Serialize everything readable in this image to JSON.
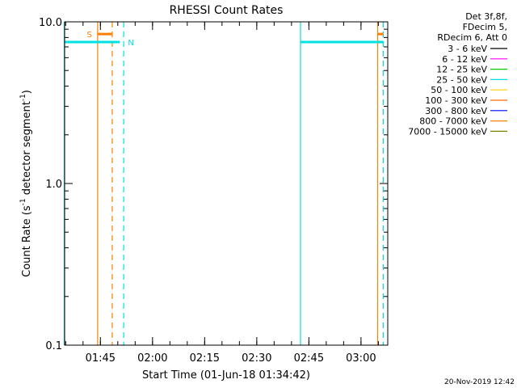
{
  "chart_data": {
    "type": "line",
    "title": "RHESSI Count Rates",
    "xlabel": "Start Time (01-Jun-18 01:34:42)",
    "ylabel_main": "Count Rate (s",
    "ylabel_sup1": "-1",
    "ylabel_mid": " detector segment",
    "ylabel_sup2": "-1",
    "ylabel_end": ")",
    "y_scale": "log",
    "ylim": [
      0.1,
      10.0
    ],
    "y_ticks": [
      "10.0",
      "1.0",
      "0.1"
    ],
    "x_ticks": [
      "01:45",
      "02:00",
      "02:15",
      "02:30",
      "02:45",
      "03:00"
    ],
    "x_range_minutes": [
      94.7,
      187.7
    ],
    "info": [
      "Det 3f,8f,",
      "FDecim 5,",
      "RDecim 6, Att 0"
    ],
    "legend": [
      {
        "label": "3 - 6 keV",
        "color": "#000000"
      },
      {
        "label": "6 - 12 keV",
        "color": "#ff00ff"
      },
      {
        "label": "12 - 25 keV",
        "color": "#00cc00"
      },
      {
        "label": "25 - 50 keV",
        "color": "#00e0e0"
      },
      {
        "label": "50 - 100 keV",
        "color": "#ffcc00"
      },
      {
        "label": "100 - 300 keV",
        "color": "#ff6600"
      },
      {
        "label": "300 - 800 keV",
        "color": "#0000ff"
      },
      {
        "label": "800 - 7000 keV",
        "color": "#ff8000"
      },
      {
        "label": "7000 - 15000 keV",
        "color": "#808000"
      }
    ],
    "markers": [
      {
        "label": "S",
        "color": "#ff8000"
      },
      {
        "label": "N",
        "color": "#00e0e0"
      }
    ],
    "saa_bars": [
      {
        "color": "#00e0e0",
        "x_start": 94.7,
        "x_end": 110.6,
        "y": 7.5
      },
      {
        "color": "#00e0e0",
        "x_start": 162.7,
        "x_end": 186.4,
        "y": 7.5
      },
      {
        "color": "#ff8000",
        "x_start": 104.2,
        "x_end": 108.4,
        "y": 8.4
      },
      {
        "color": "#ff8000",
        "x_start": 184.8,
        "x_end": 186.4,
        "y": 8.4
      }
    ],
    "vlines": [
      {
        "x": 94.6,
        "color": "#00e0e0",
        "dashed": false
      },
      {
        "x": 104.2,
        "color": "#ff8000",
        "dashed": false
      },
      {
        "x": 108.4,
        "color": "#ff8000",
        "dashed": true
      },
      {
        "x": 111.7,
        "color": "#00e0e0",
        "dashed": true
      },
      {
        "x": 162.6,
        "color": "#00e0e0",
        "dashed": false
      },
      {
        "x": 184.8,
        "color": "#ff8000",
        "dashed": false
      },
      {
        "x": 186.4,
        "color": "#ff8000",
        "dashed": true
      },
      {
        "x": 186.4,
        "color": "#00e0e0",
        "dashed": true
      }
    ],
    "timestamp": "20-Nov-2019 12:42"
  }
}
